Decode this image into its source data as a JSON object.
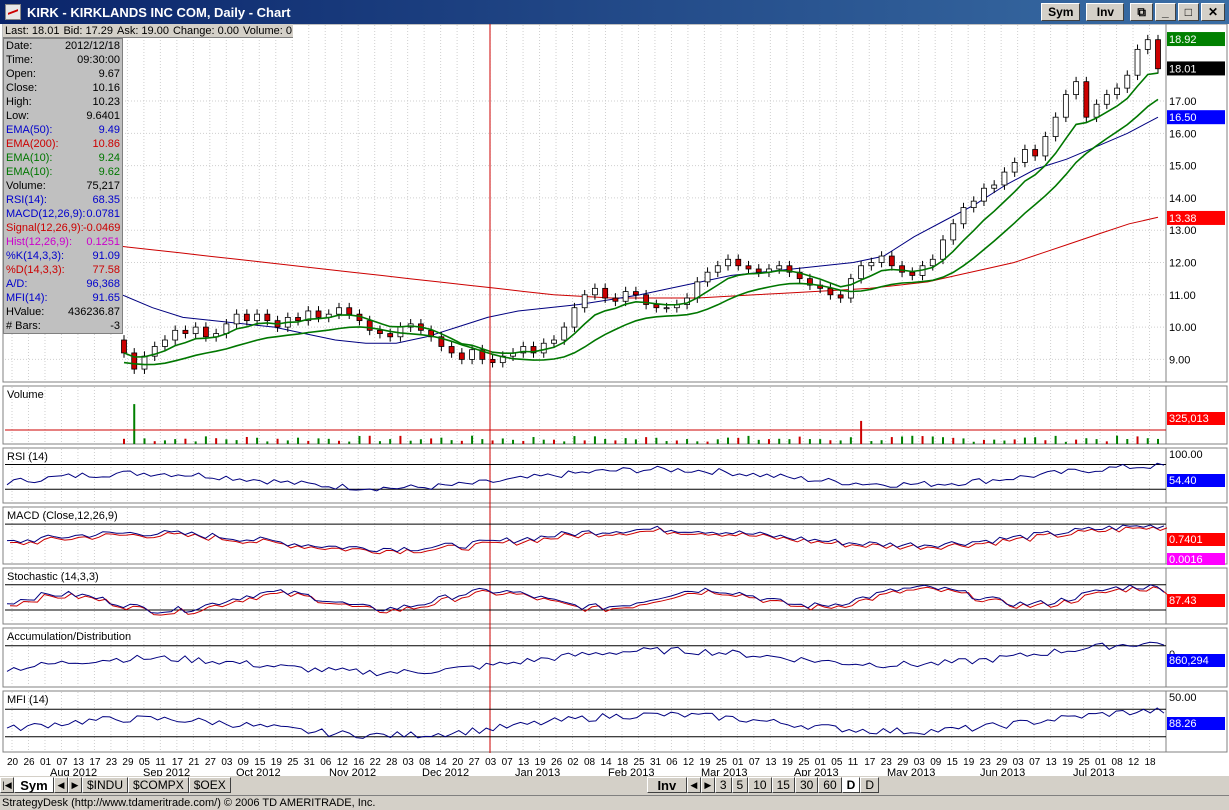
{
  "window": {
    "title": "KIRK - KIRKLANDS INC COM, Daily - Chart",
    "sym_button": "Sym",
    "inv_button": "Inv"
  },
  "quote": {
    "last": "Last: 18.01",
    "bid": "Bid: 17.29",
    "ask": "Ask: 19.00",
    "change": "Change: 0.00",
    "volume": "Volume: 0"
  },
  "data_window": [
    {
      "label": "Date:",
      "value": "2012/12/18",
      "color": "#000000"
    },
    {
      "label": "Time:",
      "value": "09:30:00",
      "color": "#000000"
    },
    {
      "label": "Open:",
      "value": "9.67",
      "color": "#000000"
    },
    {
      "label": "Close:",
      "value": "10.16",
      "color": "#000000"
    },
    {
      "label": "High:",
      "value": "10.23",
      "color": "#000000"
    },
    {
      "label": "Low:",
      "value": "9.6401",
      "color": "#000000"
    },
    {
      "label": "EMA(50):",
      "value": "9.49",
      "color": "#0000cc"
    },
    {
      "label": "EMA(200):",
      "value": "10.86",
      "color": "#cc0000"
    },
    {
      "label": "EMA(10):",
      "value": "9.24",
      "color": "#007700"
    },
    {
      "label": "EMA(10):",
      "value": "9.62",
      "color": "#007700"
    },
    {
      "label": "Volume:",
      "value": "75,217",
      "color": "#000000"
    },
    {
      "label": "RSI(14):",
      "value": "68.35",
      "color": "#0000cc"
    },
    {
      "label": "MACD(12,26,9):",
      "value": "0.0781",
      "color": "#0000cc"
    },
    {
      "label": "Signal(12,26,9):",
      "value": "-0.0469",
      "color": "#cc0000"
    },
    {
      "label": "Hist(12,26,9):",
      "value": "0.1251",
      "color": "#cc00cc"
    },
    {
      "label": "%K(14,3,3):",
      "value": "91.09",
      "color": "#0000cc"
    },
    {
      "label": "%D(14,3,3):",
      "value": "77.58",
      "color": "#cc0000"
    },
    {
      "label": "A/D:",
      "value": "96,368",
      "color": "#0000cc"
    },
    {
      "label": "MFI(14):",
      "value": "91.65",
      "color": "#0000cc"
    },
    {
      "label": "HValue:",
      "value": "436236.87",
      "color": "#000000"
    },
    {
      "label": "# Bars:",
      "value": "-3",
      "color": "#000000"
    }
  ],
  "chart_data": {
    "type": "candlestick",
    "symbol": "KIRK",
    "price_axis": {
      "range": [
        8.3,
        19.2
      ],
      "ticks": [
        "9.00",
        "10.00",
        "11.00",
        "12.00",
        "13.00",
        "14.00",
        "15.00",
        "16.00",
        "17.00"
      ]
    },
    "price_flags": [
      {
        "value": "18.92",
        "color": "#008000"
      },
      {
        "value": "18.01",
        "color": "#000000"
      },
      {
        "value": "16.50",
        "color": "#0000ff"
      },
      {
        "value": "13.38",
        "color": "#ff0000"
      }
    ],
    "close": [
      9.2,
      8.7,
      9.1,
      9.4,
      9.6,
      9.9,
      9.8,
      10.0,
      9.7,
      9.8,
      10.1,
      10.4,
      10.2,
      10.4,
      10.2,
      10.0,
      10.3,
      10.2,
      10.5,
      10.3,
      10.4,
      10.6,
      10.4,
      10.2,
      9.9,
      9.8,
      9.7,
      10.0,
      10.1,
      9.9,
      9.7,
      9.4,
      9.2,
      9.0,
      9.3,
      9.0,
      8.9,
      9.1,
      9.2,
      9.4,
      9.2,
      9.5,
      9.6,
      10.0,
      10.6,
      11.0,
      11.2,
      10.9,
      10.8,
      11.1,
      11.0,
      10.7,
      10.6,
      10.6,
      10.7,
      10.9,
      11.4,
      11.7,
      11.9,
      12.1,
      11.9,
      11.8,
      11.7,
      11.8,
      11.9,
      11.7,
      11.5,
      11.3,
      11.2,
      11.0,
      10.9,
      11.5,
      11.9,
      12.0,
      12.2,
      11.9,
      11.7,
      11.6,
      11.9,
      12.1,
      12.7,
      13.2,
      13.7,
      13.9,
      14.3,
      14.4,
      14.8,
      15.1,
      15.5,
      15.3,
      15.9,
      16.5,
      17.2,
      17.6,
      16.5,
      16.9,
      17.2,
      17.4,
      17.8,
      18.6,
      18.9,
      18.0
    ],
    "ema_series": [
      {
        "label": "EMA(200)",
        "color": "#cc0000",
        "values": [
          12.5,
          12.4,
          12.3,
          12.2,
          12.1,
          12.0,
          11.9,
          11.8,
          11.7,
          11.6,
          11.5,
          11.4,
          11.3,
          11.2,
          11.1,
          11.0,
          10.95,
          10.9,
          10.9,
          10.9,
          10.9,
          10.95,
          11.0,
          11.05,
          11.1,
          11.15,
          11.2,
          11.3,
          11.4,
          11.6,
          11.8,
          12.0,
          12.3,
          12.6,
          12.9,
          13.2,
          13.4
        ]
      },
      {
        "label": "EMA(50)",
        "color": "#000080",
        "values": [
          11.0,
          10.6,
          10.3,
          10.2,
          10.1,
          10.0,
          9.8,
          9.6,
          9.5,
          9.5,
          9.7,
          10.0,
          10.3,
          10.5,
          10.6,
          10.7,
          10.85,
          11.0,
          11.2,
          11.4,
          11.6,
          11.7,
          11.8,
          11.9,
          12.0,
          12.2,
          12.8,
          13.3,
          13.8,
          14.4,
          14.9,
          15.2,
          15.6,
          16.0,
          16.5
        ]
      }
    ],
    "x_axis": {
      "days": [
        "20",
        "26",
        "01",
        "07",
        "13",
        "17",
        "23",
        "29",
        "05",
        "11",
        "17",
        "21",
        "27",
        "03",
        "09",
        "15",
        "19",
        "25",
        "31",
        "06",
        "12",
        "16",
        "22",
        "28",
        "03",
        "08",
        "14",
        "20",
        "27",
        "03",
        "07",
        "13",
        "19",
        "26",
        "02",
        "08",
        "14",
        "18",
        "25",
        "31",
        "06",
        "12",
        "19",
        "25",
        "01",
        "07",
        "13",
        "19",
        "25",
        "01",
        "05",
        "11",
        "17",
        "23",
        "29",
        "03",
        "09",
        "15",
        "19",
        "23",
        "29",
        "03",
        "07",
        "13",
        "19",
        "25",
        "01",
        "08",
        "12",
        "18"
      ],
      "months": [
        "Aug 2012",
        "Sep 2012",
        "Oct 2012",
        "Nov 2012",
        "Dec 2012",
        "Jan 2013",
        "Feb 2013",
        "Mar 2013",
        "Apr 2013",
        "May 2013",
        "Jun 2013",
        "Jul 2013"
      ]
    },
    "panels": [
      {
        "title": "Volume",
        "flag": "325,013",
        "flag_color": "#ff0000"
      },
      {
        "title": "RSI (14)",
        "flag": "54.40",
        "flag_color": "#0000ff",
        "ticks": [
          "100.00"
        ]
      },
      {
        "title": "MACD (Close,12,26,9)",
        "flag": "0.7401",
        "flag_color": "#ff0000",
        "flag2": "0.0016",
        "flag2_color": "#ff00ff"
      },
      {
        "title": "Stochastic (14,3,3)",
        "flag": "87.43",
        "flag_color": "#ff0000"
      },
      {
        "title": "Accumulation/Distribution",
        "flag": "860,294",
        "flag_color": "#0000ff",
        "ticks": [
          "0"
        ]
      },
      {
        "title": "MFI (14)",
        "flag": "88.26",
        "flag_color": "#0000ff",
        "ticks": [
          "50.00"
        ]
      }
    ]
  },
  "tabs": {
    "sym": "Sym",
    "symbols": [
      "$INDU",
      "$COMPX",
      "$OEX"
    ],
    "inv": "Inv",
    "periods": [
      "3",
      "5",
      "10",
      "15",
      "30",
      "60",
      "D"
    ],
    "last": "D"
  },
  "status": "StrategyDesk (http://www.tdameritrade.com/) © 2006 TD AMERITRADE, Inc."
}
